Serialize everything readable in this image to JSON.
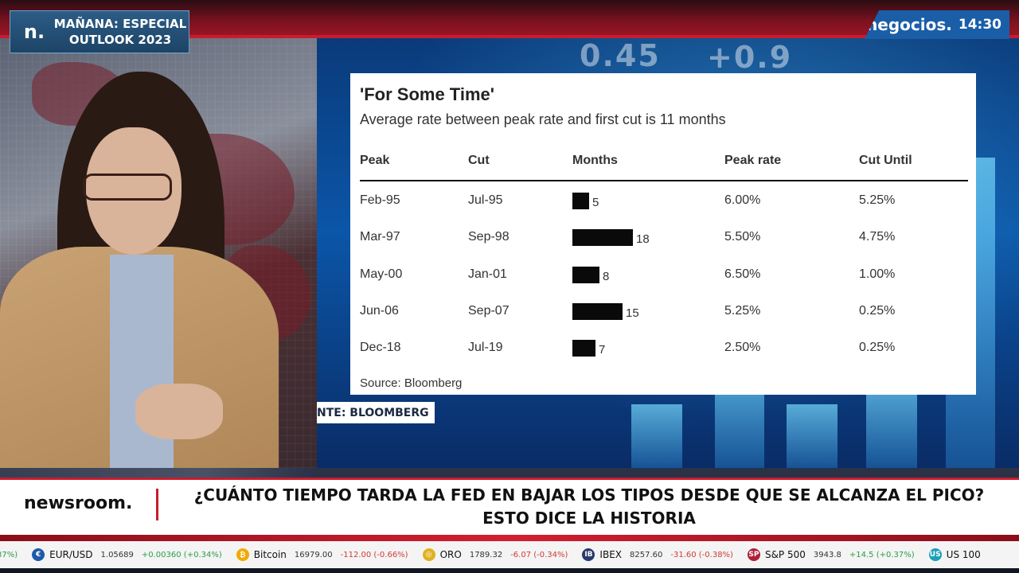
{
  "promo": {
    "logo": "n.",
    "line1": "MAÑANA: ESPECIAL",
    "line2": "OUTLOOK 2023"
  },
  "channel": {
    "name": "negocios.",
    "time": "14:30"
  },
  "background_digits": {
    "a": "0.45",
    "b": "+0.9"
  },
  "card": {
    "title": "'For Some Time'",
    "subtitle": "Average rate between peak rate and first cut is 11 months",
    "headers": [
      "Peak",
      "Cut",
      "Months",
      "Peak rate",
      "Cut Until"
    ],
    "rows": [
      {
        "peak": "Feb-95",
        "cut": "Jul-95",
        "months": 5,
        "peak_rate": "6.00%",
        "cut_until": "5.25%"
      },
      {
        "peak": "Mar-97",
        "cut": "Sep-98",
        "months": 18,
        "peak_rate": "5.50%",
        "cut_until": "4.75%"
      },
      {
        "peak": "May-00",
        "cut": "Jan-01",
        "months": 8,
        "peak_rate": "6.50%",
        "cut_until": "1.00%"
      },
      {
        "peak": "Jun-06",
        "cut": "Sep-07",
        "months": 15,
        "peak_rate": "5.25%",
        "cut_until": "0.25%"
      },
      {
        "peak": "Dec-18",
        "cut": "Jul-19",
        "months": 7,
        "peak_rate": "2.50%",
        "cut_until": "0.25%"
      }
    ],
    "source": "Source: Bloomberg"
  },
  "source_tag": "NTE: BLOOMBERG",
  "lower_third": {
    "brand": "newsroom.",
    "headline_line1": "¿CUÁNTO TIEMPO TARDA LA FED EN BAJAR LOS TIPOS DESDE QUE SE ALCANZA EL PICO?",
    "headline_line2": "ESTO DICE LA HISTORIA"
  },
  "ticker": [
    {
      "name": "",
      "price": "",
      "change": "37%)",
      "icon": "",
      "color": "#2a9d4a",
      "up": true
    },
    {
      "name": "EUR/USD",
      "price": "1.05689",
      "change": "+0.00360 (+0.34%)",
      "icon": "€",
      "color": "#1e5aa8",
      "up": true
    },
    {
      "name": "Bitcoin",
      "price": "16979.00",
      "change": "-112.00 (-0.66%)",
      "icon": "₿",
      "color": "#f2a900",
      "up": false
    },
    {
      "name": "ORO",
      "price": "1789.32",
      "change": "-6.07 (-0.34%)",
      "icon": "◎",
      "color": "#e0b020",
      "up": false
    },
    {
      "name": "IBEX",
      "price": "8257.60",
      "change": "-31.60 (-0.38%)",
      "icon": "IB",
      "color": "#2a3a6a",
      "up": false
    },
    {
      "name": "S&P 500",
      "price": "3943.8",
      "change": "+14.5 (+0.37%)",
      "icon": "SP",
      "color": "#b0203a",
      "up": true
    },
    {
      "name": "US 100",
      "price": "",
      "change": "",
      "icon": "US",
      "color": "#1aa0b8",
      "up": true
    }
  ]
}
